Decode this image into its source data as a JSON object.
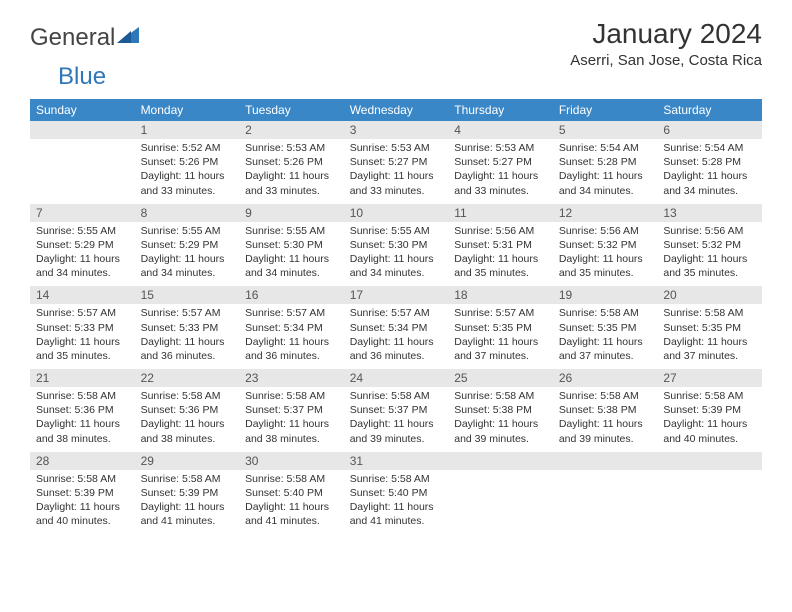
{
  "brand": {
    "part1": "General",
    "part2": "Blue"
  },
  "title": "January 2024",
  "subtitle": "Aserri, San Jose, Costa Rica",
  "colors": {
    "header_bg": "#3a87c8",
    "header_text": "#ffffff",
    "daynum_bg": "#e7e7e7",
    "rule": "#2f77b8",
    "text": "#333333",
    "logo_blue": "#2f77b8"
  },
  "typography": {
    "title_fontsize": 28,
    "subtitle_fontsize": 15,
    "dayhead_fontsize": 12,
    "cell_fontsize": 10.5
  },
  "day_headers": [
    "Sunday",
    "Monday",
    "Tuesday",
    "Wednesday",
    "Thursday",
    "Friday",
    "Saturday"
  ],
  "weeks": [
    [
      null,
      {
        "n": "1",
        "sr": "Sunrise: 5:52 AM",
        "ss": "Sunset: 5:26 PM",
        "d1": "Daylight: 11 hours",
        "d2": "and 33 minutes."
      },
      {
        "n": "2",
        "sr": "Sunrise: 5:53 AM",
        "ss": "Sunset: 5:26 PM",
        "d1": "Daylight: 11 hours",
        "d2": "and 33 minutes."
      },
      {
        "n": "3",
        "sr": "Sunrise: 5:53 AM",
        "ss": "Sunset: 5:27 PM",
        "d1": "Daylight: 11 hours",
        "d2": "and 33 minutes."
      },
      {
        "n": "4",
        "sr": "Sunrise: 5:53 AM",
        "ss": "Sunset: 5:27 PM",
        "d1": "Daylight: 11 hours",
        "d2": "and 33 minutes."
      },
      {
        "n": "5",
        "sr": "Sunrise: 5:54 AM",
        "ss": "Sunset: 5:28 PM",
        "d1": "Daylight: 11 hours",
        "d2": "and 34 minutes."
      },
      {
        "n": "6",
        "sr": "Sunrise: 5:54 AM",
        "ss": "Sunset: 5:28 PM",
        "d1": "Daylight: 11 hours",
        "d2": "and 34 minutes."
      }
    ],
    [
      {
        "n": "7",
        "sr": "Sunrise: 5:55 AM",
        "ss": "Sunset: 5:29 PM",
        "d1": "Daylight: 11 hours",
        "d2": "and 34 minutes."
      },
      {
        "n": "8",
        "sr": "Sunrise: 5:55 AM",
        "ss": "Sunset: 5:29 PM",
        "d1": "Daylight: 11 hours",
        "d2": "and 34 minutes."
      },
      {
        "n": "9",
        "sr": "Sunrise: 5:55 AM",
        "ss": "Sunset: 5:30 PM",
        "d1": "Daylight: 11 hours",
        "d2": "and 34 minutes."
      },
      {
        "n": "10",
        "sr": "Sunrise: 5:55 AM",
        "ss": "Sunset: 5:30 PM",
        "d1": "Daylight: 11 hours",
        "d2": "and 34 minutes."
      },
      {
        "n": "11",
        "sr": "Sunrise: 5:56 AM",
        "ss": "Sunset: 5:31 PM",
        "d1": "Daylight: 11 hours",
        "d2": "and 35 minutes."
      },
      {
        "n": "12",
        "sr": "Sunrise: 5:56 AM",
        "ss": "Sunset: 5:32 PM",
        "d1": "Daylight: 11 hours",
        "d2": "and 35 minutes."
      },
      {
        "n": "13",
        "sr": "Sunrise: 5:56 AM",
        "ss": "Sunset: 5:32 PM",
        "d1": "Daylight: 11 hours",
        "d2": "and 35 minutes."
      }
    ],
    [
      {
        "n": "14",
        "sr": "Sunrise: 5:57 AM",
        "ss": "Sunset: 5:33 PM",
        "d1": "Daylight: 11 hours",
        "d2": "and 35 minutes."
      },
      {
        "n": "15",
        "sr": "Sunrise: 5:57 AM",
        "ss": "Sunset: 5:33 PM",
        "d1": "Daylight: 11 hours",
        "d2": "and 36 minutes."
      },
      {
        "n": "16",
        "sr": "Sunrise: 5:57 AM",
        "ss": "Sunset: 5:34 PM",
        "d1": "Daylight: 11 hours",
        "d2": "and 36 minutes."
      },
      {
        "n": "17",
        "sr": "Sunrise: 5:57 AM",
        "ss": "Sunset: 5:34 PM",
        "d1": "Daylight: 11 hours",
        "d2": "and 36 minutes."
      },
      {
        "n": "18",
        "sr": "Sunrise: 5:57 AM",
        "ss": "Sunset: 5:35 PM",
        "d1": "Daylight: 11 hours",
        "d2": "and 37 minutes."
      },
      {
        "n": "19",
        "sr": "Sunrise: 5:58 AM",
        "ss": "Sunset: 5:35 PM",
        "d1": "Daylight: 11 hours",
        "d2": "and 37 minutes."
      },
      {
        "n": "20",
        "sr": "Sunrise: 5:58 AM",
        "ss": "Sunset: 5:35 PM",
        "d1": "Daylight: 11 hours",
        "d2": "and 37 minutes."
      }
    ],
    [
      {
        "n": "21",
        "sr": "Sunrise: 5:58 AM",
        "ss": "Sunset: 5:36 PM",
        "d1": "Daylight: 11 hours",
        "d2": "and 38 minutes."
      },
      {
        "n": "22",
        "sr": "Sunrise: 5:58 AM",
        "ss": "Sunset: 5:36 PM",
        "d1": "Daylight: 11 hours",
        "d2": "and 38 minutes."
      },
      {
        "n": "23",
        "sr": "Sunrise: 5:58 AM",
        "ss": "Sunset: 5:37 PM",
        "d1": "Daylight: 11 hours",
        "d2": "and 38 minutes."
      },
      {
        "n": "24",
        "sr": "Sunrise: 5:58 AM",
        "ss": "Sunset: 5:37 PM",
        "d1": "Daylight: 11 hours",
        "d2": "and 39 minutes."
      },
      {
        "n": "25",
        "sr": "Sunrise: 5:58 AM",
        "ss": "Sunset: 5:38 PM",
        "d1": "Daylight: 11 hours",
        "d2": "and 39 minutes."
      },
      {
        "n": "26",
        "sr": "Sunrise: 5:58 AM",
        "ss": "Sunset: 5:38 PM",
        "d1": "Daylight: 11 hours",
        "d2": "and 39 minutes."
      },
      {
        "n": "27",
        "sr": "Sunrise: 5:58 AM",
        "ss": "Sunset: 5:39 PM",
        "d1": "Daylight: 11 hours",
        "d2": "and 40 minutes."
      }
    ],
    [
      {
        "n": "28",
        "sr": "Sunrise: 5:58 AM",
        "ss": "Sunset: 5:39 PM",
        "d1": "Daylight: 11 hours",
        "d2": "and 40 minutes."
      },
      {
        "n": "29",
        "sr": "Sunrise: 5:58 AM",
        "ss": "Sunset: 5:39 PM",
        "d1": "Daylight: 11 hours",
        "d2": "and 41 minutes."
      },
      {
        "n": "30",
        "sr": "Sunrise: 5:58 AM",
        "ss": "Sunset: 5:40 PM",
        "d1": "Daylight: 11 hours",
        "d2": "and 41 minutes."
      },
      {
        "n": "31",
        "sr": "Sunrise: 5:58 AM",
        "ss": "Sunset: 5:40 PM",
        "d1": "Daylight: 11 hours",
        "d2": "and 41 minutes."
      },
      null,
      null,
      null
    ]
  ]
}
